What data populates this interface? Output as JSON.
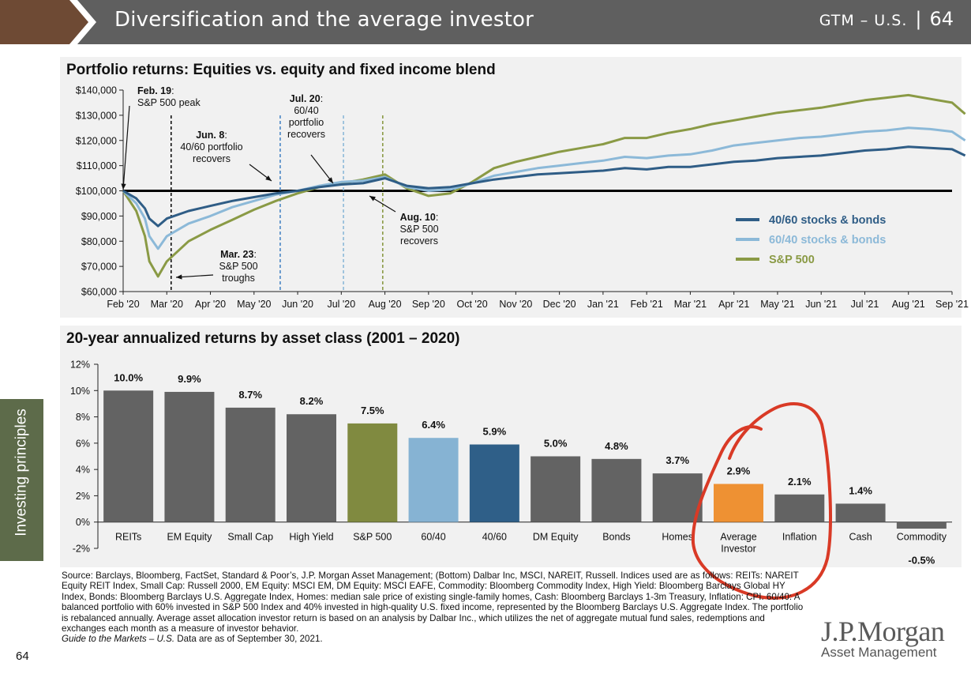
{
  "header": {
    "title": "Diversification and the average investor",
    "code": "GTM – U.S.",
    "page": "64",
    "colors": {
      "band": "#5f5f5f",
      "accent": "#6e4a34"
    }
  },
  "side_tab": {
    "label": "Investing principles"
  },
  "page_number": "64",
  "logo": {
    "line1": "J.P.Morgan",
    "line2": "Asset Management"
  },
  "source": {
    "text": "Source: Barclays, Bloomberg, FactSet, Standard & Poor’s, J.P. Morgan Asset Management; (Bottom) Dalbar Inc, MSCI, NAREIT, Russell. Indices used are as follows: REITs: NAREIT Equity REIT Index, Small Cap: Russell 2000, EM Equity: MSCI EM, DM Equity: MSCI EAFE, Commodity: Bloomberg Commodity Index, High Yield: Bloomberg Barclays Global HY Index, Bonds: Bloomberg Barclays U.S. Aggregate Index, Homes: median sale price of existing single-family homes, Cash: Bloomberg Barclays 1-3m Treasury, Inflation: CPI. 60/40: A balanced portfolio with 60% invested in S&P 500 Index and 40% invested in high-quality U.S. fixed income, represented by the Bloomberg Barclays U.S. Aggregate Index. The portfolio is rebalanced annually. Average asset allocation investor return is based on an analysis by Dalbar Inc., which utilizes the net of aggregate mutual fund sales, redemptions and exchanges each month as a measure of investor behavior.",
    "guide": "Guide to the Markets – U.S.",
    "asof": " Data are as of September 30, 2021."
  },
  "chart_data": [
    {
      "type": "line",
      "title": "Portfolio returns: Equities vs. equity and fixed income blend",
      "ylim": [
        60000,
        140000
      ],
      "yticks": [
        "$60,000",
        "$70,000",
        "$80,000",
        "$90,000",
        "$100,000",
        "$110,000",
        "$120,000",
        "$130,000",
        "$140,000"
      ],
      "xticks": [
        "Feb '20",
        "Mar '20",
        "Apr '20",
        "May '20",
        "Jun '20",
        "Jul '20",
        "Aug '20",
        "Sep '20",
        "Oct '20",
        "Nov '20",
        "Dec '20",
        "Jan '21",
        "Feb '21",
        "Mar '21",
        "Apr '21",
        "May '21",
        "Jun '21",
        "Jul '21",
        "Aug '21",
        "Sep '21"
      ],
      "baseline": 100000,
      "x_months": [
        0,
        0.3,
        0.5,
        0.6,
        0.8,
        1.0,
        1.5,
        2,
        2.5,
        3,
        3.5,
        4,
        4.5,
        5,
        5.5,
        6,
        6.5,
        7,
        7.5,
        8,
        8.5,
        9,
        9.5,
        10,
        10.5,
        11,
        11.5,
        12,
        12.5,
        13,
        13.5,
        14,
        14.5,
        15,
        15.5,
        16,
        16.5,
        17,
        17.5,
        18,
        18.5,
        19,
        19.3
      ],
      "series": [
        {
          "name": "40/60 stocks & bonds",
          "color": "#2f5d86",
          "values": [
            100000,
            97000,
            93000,
            89000,
            86000,
            89000,
            92000,
            94000,
            96000,
            97500,
            99000,
            100000,
            101500,
            102500,
            103000,
            105000,
            102000,
            101000,
            101500,
            103000,
            104500,
            105500,
            106500,
            107000,
            107500,
            108000,
            109000,
            108500,
            109500,
            109500,
            110500,
            111500,
            112000,
            113000,
            113500,
            114000,
            115000,
            116000,
            116500,
            117500,
            117000,
            116500,
            114000
          ]
        },
        {
          "name": "60/40 stocks & bonds",
          "color": "#8cb9d8",
          "values": [
            100000,
            95000,
            89000,
            82000,
            77000,
            82000,
            87000,
            90000,
            93500,
            96000,
            98500,
            100000,
            102000,
            103500,
            104000,
            105500,
            101500,
            100000,
            100500,
            103000,
            106000,
            107500,
            109000,
            110000,
            111000,
            112000,
            113500,
            113000,
            114000,
            114500,
            116000,
            118000,
            119000,
            120000,
            121000,
            121500,
            122500,
            123500,
            124000,
            125000,
            124500,
            123500,
            120000
          ]
        },
        {
          "name": "S&P 500",
          "color": "#8a9a45",
          "values": [
            100000,
            92000,
            82000,
            72000,
            66000,
            72000,
            80000,
            84500,
            88500,
            92500,
            96000,
            99000,
            101500,
            103000,
            104500,
            106500,
            101000,
            98000,
            99000,
            103500,
            109000,
            111500,
            113500,
            115500,
            117000,
            118500,
            121000,
            121000,
            123000,
            124500,
            126500,
            128000,
            129500,
            131000,
            132000,
            133000,
            134500,
            136000,
            137000,
            138000,
            136500,
            135000,
            130500
          ]
        }
      ],
      "event_lines": [
        {
          "x": 1.1,
          "color": "#111111"
        },
        {
          "x": 3.6,
          "color": "#4a86c5"
        },
        {
          "x": 5.05,
          "color": "#8cb9d8"
        },
        {
          "x": 5.95,
          "color": "#8a9a45"
        }
      ],
      "annotations": [
        {
          "bold": "Feb. 19",
          "lines": [
            ":",
            "S&P 500 peak"
          ]
        },
        {
          "bold": "Jun. 8",
          "lines": [
            ":",
            "40/60 portfolio",
            "recovers"
          ]
        },
        {
          "bold": "Jul. 20",
          "lines": [
            ":",
            "60/40",
            "portfolio",
            "recovers"
          ]
        },
        {
          "bold": "Aug. 10",
          "lines": [
            ":",
            "S&P 500",
            "recovers"
          ]
        },
        {
          "bold": "Mar. 23",
          "lines": [
            ":",
            "S&P 500",
            "troughs"
          ]
        }
      ],
      "legend": [
        "40/60 stocks & bonds",
        "60/40 stocks & bonds",
        "S&P 500"
      ]
    },
    {
      "type": "bar",
      "title": "20-year annualized returns by asset class (2001 – 2020)",
      "ylim": [
        -2,
        12
      ],
      "yticks": [
        "-2%",
        "0%",
        "2%",
        "4%",
        "6%",
        "8%",
        "10%",
        "12%"
      ],
      "categories": [
        "REITs",
        "EM Equity",
        "Small Cap",
        "High Yield",
        "S&P 500",
        "60/40",
        "40/60",
        "DM Equity",
        "Bonds",
        "Homes",
        "Average Investor",
        "Inflation",
        "Cash",
        "Commodity"
      ],
      "values": [
        10.0,
        9.9,
        8.7,
        8.2,
        7.5,
        6.4,
        5.9,
        5.0,
        4.8,
        3.7,
        2.9,
        2.1,
        1.4,
        -0.5
      ],
      "labels": [
        "10.0%",
        "9.9%",
        "8.7%",
        "8.2%",
        "7.5%",
        "6.4%",
        "5.9%",
        "5.0%",
        "4.8%",
        "3.7%",
        "2.9%",
        "2.1%",
        "1.4%",
        "-0.5%"
      ],
      "colors": [
        "#636363",
        "#636363",
        "#636363",
        "#636363",
        "#808a40",
        "#86b3d3",
        "#2f5f88",
        "#636363",
        "#636363",
        "#636363",
        "#ee9133",
        "#636363",
        "#636363",
        "#636363"
      ],
      "highlight": {
        "color": "#d93a26"
      }
    }
  ]
}
